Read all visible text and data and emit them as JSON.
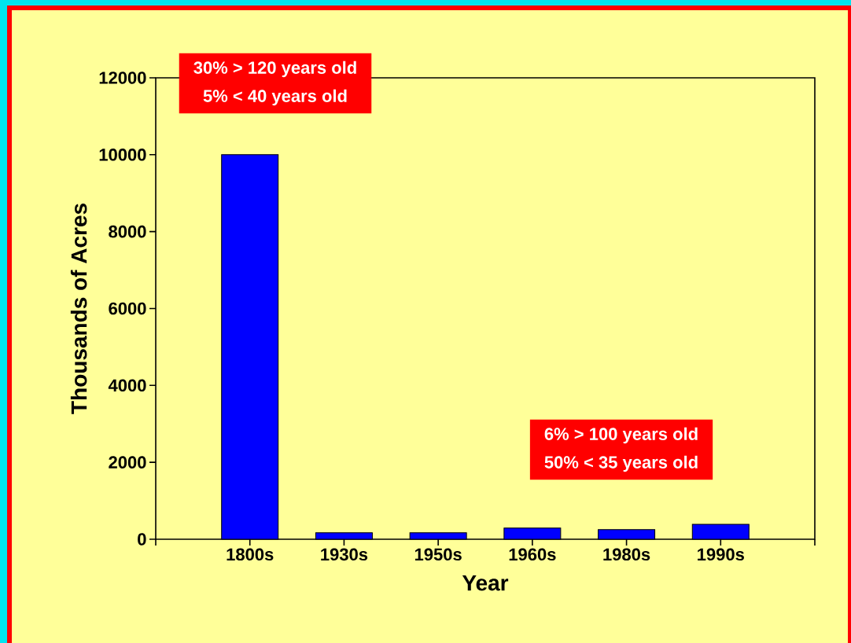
{
  "chart_data": {
    "type": "bar",
    "xlabel": "Year",
    "ylabel": "Thousands of Acres",
    "categories": [
      "1800s",
      "1930s",
      "1950s",
      "1960s",
      "1980s",
      "1990s"
    ],
    "values": [
      10000,
      170,
      170,
      290,
      250,
      390
    ],
    "color": "#0000ff",
    "ylim": [
      0,
      12000
    ],
    "yticks": [
      0,
      2000,
      4000,
      6000,
      8000,
      10000,
      12000
    ],
    "annotations": [
      "30% > 120 years old",
      "5% < 40 years old",
      "6% > 100 years old",
      "50% < 35 years old"
    ]
  }
}
